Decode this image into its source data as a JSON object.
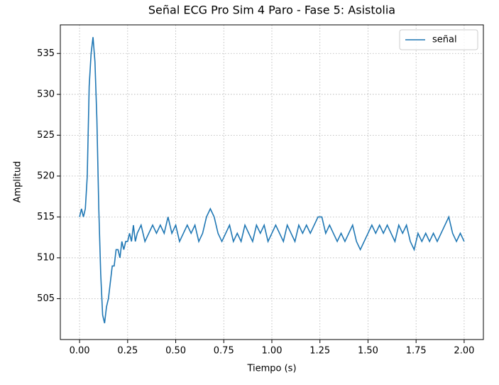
{
  "chart_data": {
    "type": "line",
    "title": "Señal ECG Pro Sim 4 Paro - Fase 5: Asistolia",
    "x_label": "Tiempo (s)",
    "y_label": "Amplitud",
    "x": [
      0.0,
      0.01,
      0.02,
      0.03,
      0.04,
      0.05,
      0.06,
      0.07,
      0.08,
      0.09,
      0.1,
      0.11,
      0.12,
      0.13,
      0.14,
      0.15,
      0.16,
      0.17,
      0.18,
      0.19,
      0.2,
      0.21,
      0.22,
      0.23,
      0.24,
      0.25,
      0.26,
      0.27,
      0.28,
      0.29,
      0.3,
      0.32,
      0.34,
      0.36,
      0.38,
      0.4,
      0.42,
      0.44,
      0.46,
      0.48,
      0.5,
      0.52,
      0.54,
      0.56,
      0.58,
      0.6,
      0.62,
      0.64,
      0.66,
      0.68,
      0.7,
      0.72,
      0.74,
      0.76,
      0.78,
      0.8,
      0.82,
      0.84,
      0.86,
      0.88,
      0.9,
      0.92,
      0.94,
      0.96,
      0.98,
      1.0,
      1.02,
      1.04,
      1.06,
      1.08,
      1.1,
      1.12,
      1.14,
      1.16,
      1.18,
      1.2,
      1.22,
      1.24,
      1.26,
      1.28,
      1.3,
      1.32,
      1.34,
      1.36,
      1.38,
      1.4,
      1.42,
      1.44,
      1.46,
      1.48,
      1.5,
      1.52,
      1.54,
      1.56,
      1.58,
      1.6,
      1.62,
      1.64,
      1.66,
      1.68,
      1.7,
      1.72,
      1.74,
      1.76,
      1.78,
      1.8,
      1.82,
      1.84,
      1.86,
      1.88,
      1.9,
      1.92,
      1.94,
      1.96,
      1.98,
      2.0
    ],
    "series": [
      {
        "name": "señal",
        "color": "#1f77b4",
        "values": [
          515,
          516,
          515,
          516,
          520,
          531,
          535,
          537,
          534,
          527,
          516,
          508,
          503,
          502,
          504,
          505,
          507,
          509,
          509,
          511,
          511,
          510,
          512,
          511,
          512,
          512,
          513,
          512,
          514,
          512,
          513,
          514,
          512,
          513,
          514,
          513,
          514,
          513,
          515,
          513,
          514,
          512,
          513,
          514,
          513,
          514,
          512,
          513,
          515,
          516,
          515,
          513,
          512,
          513,
          514,
          512,
          513,
          512,
          514,
          513,
          512,
          514,
          513,
          514,
          512,
          513,
          514,
          513,
          512,
          514,
          513,
          512,
          514,
          513,
          514,
          513,
          514,
          515,
          515,
          513,
          514,
          513,
          512,
          513,
          512,
          513,
          514,
          512,
          511,
          512,
          513,
          514,
          513,
          514,
          513,
          514,
          513,
          512,
          514,
          513,
          514,
          512,
          511,
          513,
          512,
          513,
          512,
          513,
          512,
          513,
          514,
          515,
          513,
          512,
          513,
          512
        ]
      }
    ],
    "xlim": [
      -0.1,
      2.1
    ],
    "ylim": [
      500,
      538.5
    ],
    "xticks": [
      {
        "value": 0,
        "label": "0.00"
      },
      0.25,
      {
        "value": 0.5,
        "label": "0.50"
      },
      0.75,
      {
        "value": 1,
        "label": "1.00"
      },
      1.25,
      {
        "value": 1.5,
        "label": "1.50"
      },
      1.75,
      {
        "value": 2,
        "label": "2.00"
      }
    ],
    "yticks": [
      505,
      510,
      515,
      520,
      525,
      530,
      535
    ],
    "grid": true,
    "legend": "upper right"
  }
}
